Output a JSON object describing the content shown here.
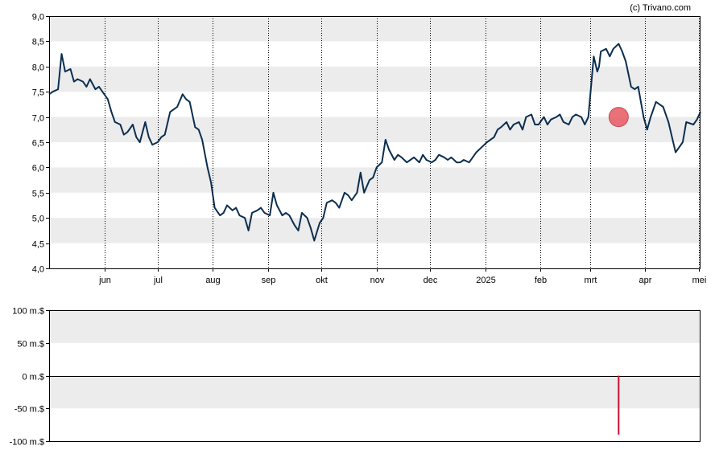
{
  "credit": "(c) Trivano.com",
  "colors": {
    "band": "#ececec",
    "line": "#0b2e4f",
    "marker": "#e8606a",
    "volume_bar": "#c8102e"
  },
  "chart_data": [
    {
      "type": "line",
      "title": "",
      "xlabel": "",
      "ylabel": "",
      "x_ticks": [
        "jun",
        "jul",
        "aug",
        "sep",
        "okt",
        "nov",
        "dec",
        "2025",
        "feb",
        "mrt",
        "apr",
        "mei"
      ],
      "y_ticks": [
        "4,0",
        "4,5",
        "5,0",
        "5,5",
        "6,0",
        "6,5",
        "7,0",
        "7,5",
        "8,0",
        "8,5",
        "9,0"
      ],
      "ylim": [
        4.0,
        9.0
      ],
      "xlim": [
        "2024-05-01",
        "2025-05-02"
      ],
      "grid": "vertical dotted at month starts, alternating horizontal bands",
      "series": [
        {
          "x": [
            "2024-05-01",
            "2024-05-03",
            "2024-05-06",
            "2024-05-08",
            "2024-05-10",
            "2024-05-13",
            "2024-05-15",
            "2024-05-17",
            "2024-05-20",
            "2024-05-22",
            "2024-05-24",
            "2024-05-27",
            "2024-05-29",
            "2024-05-31",
            "2024-06-03",
            "2024-06-05",
            "2024-06-07",
            "2024-06-10",
            "2024-06-12",
            "2024-06-14",
            "2024-06-17",
            "2024-06-19",
            "2024-06-21",
            "2024-06-24",
            "2024-06-26",
            "2024-06-28",
            "2024-07-01",
            "2024-07-03",
            "2024-07-05",
            "2024-07-08",
            "2024-07-10",
            "2024-07-12",
            "2024-07-15",
            "2024-07-17",
            "2024-07-19",
            "2024-07-22",
            "2024-07-24",
            "2024-07-26",
            "2024-07-29",
            "2024-07-31",
            "2024-08-02",
            "2024-08-05",
            "2024-08-07",
            "2024-08-09",
            "2024-08-12",
            "2024-08-14",
            "2024-08-16",
            "2024-08-19",
            "2024-08-21",
            "2024-08-23",
            "2024-08-26",
            "2024-08-28",
            "2024-08-30",
            "2024-09-02",
            "2024-09-04",
            "2024-09-06",
            "2024-09-09",
            "2024-09-11",
            "2024-09-13",
            "2024-09-16",
            "2024-09-18",
            "2024-09-20",
            "2024-09-23",
            "2024-09-25",
            "2024-09-27",
            "2024-09-30",
            "2024-10-02",
            "2024-10-04",
            "2024-10-07",
            "2024-10-09",
            "2024-10-11",
            "2024-10-14",
            "2024-10-16",
            "2024-10-18",
            "2024-10-21",
            "2024-10-23",
            "2024-10-25",
            "2024-10-28",
            "2024-10-30",
            "2024-11-01",
            "2024-11-04",
            "2024-11-06",
            "2024-11-08",
            "2024-11-11",
            "2024-11-13",
            "2024-11-15",
            "2024-11-18",
            "2024-11-20",
            "2024-11-22",
            "2024-11-25",
            "2024-11-27",
            "2024-11-29",
            "2024-12-02",
            "2024-12-04",
            "2024-12-06",
            "2024-12-09",
            "2024-12-11",
            "2024-12-13",
            "2024-12-16",
            "2024-12-18",
            "2024-12-20",
            "2024-12-23",
            "2024-12-27",
            "2024-12-30",
            "2025-01-02",
            "2025-01-06",
            "2025-01-08",
            "2025-01-10",
            "2025-01-13",
            "2025-01-15",
            "2025-01-17",
            "2025-01-20",
            "2025-01-22",
            "2025-01-24",
            "2025-01-27",
            "2025-01-29",
            "2025-01-31",
            "2025-02-03",
            "2025-02-05",
            "2025-02-07",
            "2025-02-10",
            "2025-02-12",
            "2025-02-14",
            "2025-02-17",
            "2025-02-19",
            "2025-02-21",
            "2025-02-24",
            "2025-02-26",
            "2025-02-28",
            "2025-03-03",
            "2025-03-05",
            "2025-03-06",
            "2025-03-07",
            "2025-03-10",
            "2025-03-12",
            "2025-03-14",
            "2025-03-17",
            "2025-03-19",
            "2025-03-21",
            "2025-03-24",
            "2025-03-26",
            "2025-03-28",
            "2025-03-31",
            "2025-04-02",
            "2025-04-04",
            "2025-04-07",
            "2025-04-09",
            "2025-04-11",
            "2025-04-14",
            "2025-04-16",
            "2025-04-18",
            "2025-04-22",
            "2025-04-24",
            "2025-04-28",
            "2025-04-30",
            "2025-05-02"
          ],
          "y": [
            7.45,
            7.5,
            7.55,
            8.25,
            7.9,
            7.95,
            7.7,
            7.75,
            7.7,
            7.6,
            7.75,
            7.55,
            7.6,
            7.5,
            7.35,
            7.1,
            6.9,
            6.85,
            6.65,
            6.7,
            6.85,
            6.6,
            6.5,
            6.9,
            6.6,
            6.45,
            6.5,
            6.6,
            6.65,
            7.1,
            7.15,
            7.2,
            7.45,
            7.35,
            7.3,
            6.8,
            6.75,
            6.55,
            6.0,
            5.7,
            5.2,
            5.05,
            5.1,
            5.25,
            5.15,
            5.2,
            5.05,
            5.0,
            4.75,
            5.1,
            5.15,
            5.2,
            5.1,
            5.05,
            5.5,
            5.25,
            5.05,
            5.1,
            5.05,
            4.85,
            4.75,
            5.1,
            5.0,
            4.8,
            4.55,
            4.9,
            5.0,
            5.3,
            5.35,
            5.3,
            5.2,
            5.5,
            5.45,
            5.35,
            5.5,
            5.9,
            5.5,
            5.75,
            5.8,
            6.0,
            6.1,
            6.55,
            6.35,
            6.15,
            6.25,
            6.2,
            6.1,
            6.15,
            6.2,
            6.1,
            6.25,
            6.15,
            6.1,
            6.15,
            6.25,
            6.2,
            6.15,
            6.2,
            6.1,
            6.1,
            6.15,
            6.1,
            6.3,
            6.4,
            6.5,
            6.6,
            6.75,
            6.8,
            6.9,
            6.75,
            6.85,
            6.9,
            6.75,
            7.0,
            7.05,
            6.85,
            6.85,
            7.0,
            6.85,
            6.95,
            7.0,
            7.05,
            6.9,
            6.85,
            7.0,
            7.05,
            7.0,
            6.85,
            7.0,
            8.2,
            7.9,
            8.0,
            8.3,
            8.35,
            8.2,
            8.35,
            8.45,
            8.3,
            8.1,
            7.6,
            7.55,
            7.6,
            7.0,
            6.75,
            7.0,
            7.3,
            7.25,
            7.2,
            6.9,
            6.6,
            6.3,
            6.5,
            6.9,
            6.85,
            6.95,
            7.1
          ],
          "markers": [
            {
              "x": "2025-03-17",
              "y": 7.0
            }
          ]
        }
      ]
    },
    {
      "type": "bar",
      "title": "",
      "xlabel": "",
      "ylabel": "",
      "y_ticks": [
        "100 m.$",
        "50 m.$",
        "0 m.$",
        "-50 m.$",
        "-100 m.$"
      ],
      "ylim": [
        -100,
        100
      ],
      "xlim": [
        "2024-05-01",
        "2025-05-02"
      ],
      "grid": "alternating horizontal bands, zero line",
      "series": [
        {
          "x": [
            "2025-03-17"
          ],
          "values": [
            -90
          ]
        }
      ]
    }
  ]
}
